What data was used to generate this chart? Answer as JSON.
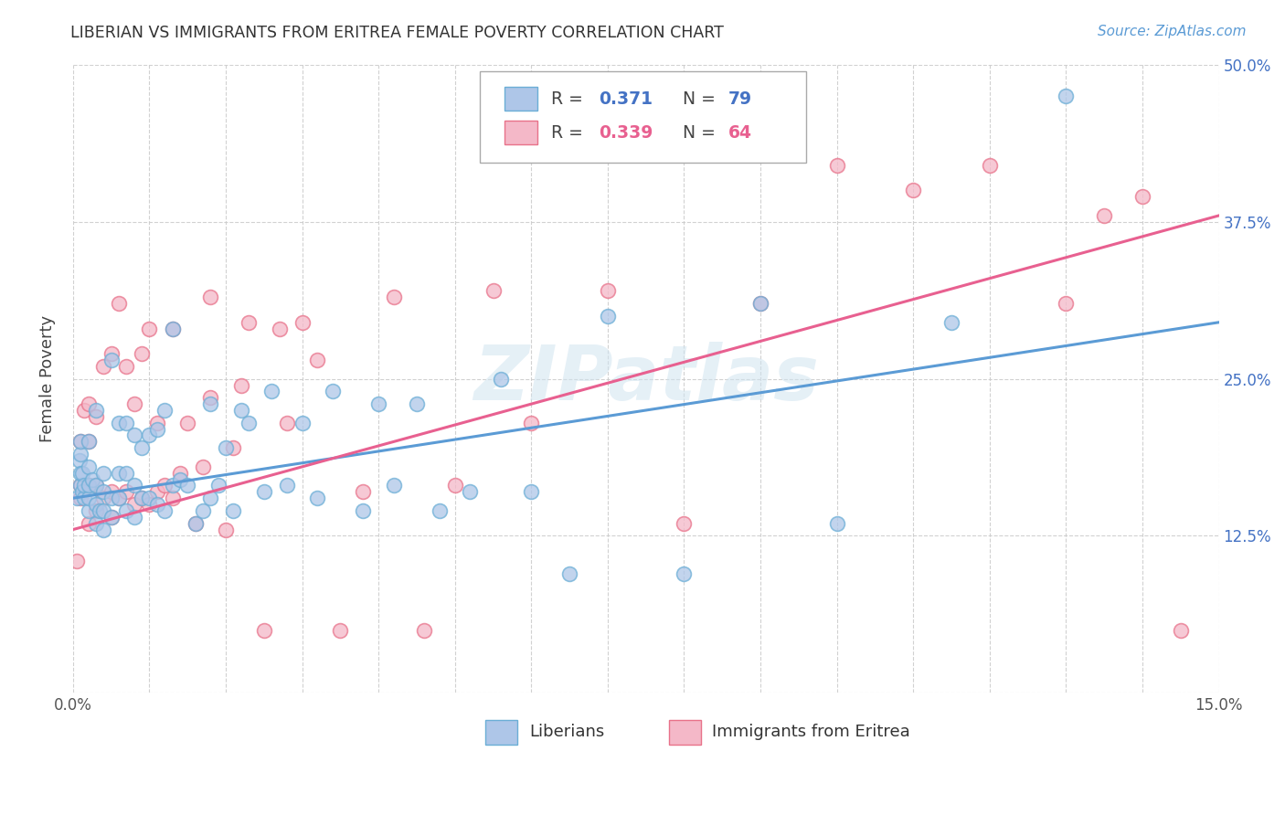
{
  "title": "LIBERIAN VS IMMIGRANTS FROM ERITREA FEMALE POVERTY CORRELATION CHART",
  "source_text": "Source: ZipAtlas.com",
  "ylabel": "Female Poverty",
  "xlim": [
    0.0,
    0.15
  ],
  "ylim": [
    0.0,
    0.5
  ],
  "watermark": "ZIPatlas",
  "legend_R1": "0.371",
  "legend_N1": "79",
  "legend_R2": "0.339",
  "legend_N2": "64",
  "color_liberian_fill": "#aec6e8",
  "color_liberian_edge": "#6baed6",
  "color_eritrea_fill": "#f4b8c8",
  "color_eritrea_edge": "#e8728a",
  "color_line_liberian": "#5b9bd5",
  "color_line_eritrea": "#e86090",
  "color_ytick_right": "#4472c4",
  "liberian_x": [
    0.0005,
    0.0008,
    0.001,
    0.001,
    0.001,
    0.001,
    0.0012,
    0.0012,
    0.0015,
    0.0015,
    0.002,
    0.002,
    0.002,
    0.002,
    0.002,
    0.0025,
    0.003,
    0.003,
    0.003,
    0.003,
    0.0035,
    0.004,
    0.004,
    0.004,
    0.004,
    0.005,
    0.005,
    0.005,
    0.006,
    0.006,
    0.006,
    0.007,
    0.007,
    0.007,
    0.008,
    0.008,
    0.008,
    0.009,
    0.009,
    0.01,
    0.01,
    0.011,
    0.011,
    0.012,
    0.012,
    0.013,
    0.013,
    0.014,
    0.015,
    0.016,
    0.017,
    0.018,
    0.018,
    0.019,
    0.02,
    0.021,
    0.022,
    0.023,
    0.025,
    0.026,
    0.028,
    0.03,
    0.032,
    0.034,
    0.038,
    0.04,
    0.042,
    0.045,
    0.048,
    0.052,
    0.056,
    0.06,
    0.065,
    0.07,
    0.08,
    0.09,
    0.1,
    0.115,
    0.13
  ],
  "liberian_y": [
    0.155,
    0.185,
    0.165,
    0.175,
    0.19,
    0.2,
    0.16,
    0.175,
    0.155,
    0.165,
    0.145,
    0.155,
    0.165,
    0.18,
    0.2,
    0.17,
    0.135,
    0.15,
    0.165,
    0.225,
    0.145,
    0.13,
    0.145,
    0.16,
    0.175,
    0.14,
    0.155,
    0.265,
    0.155,
    0.175,
    0.215,
    0.145,
    0.175,
    0.215,
    0.14,
    0.165,
    0.205,
    0.155,
    0.195,
    0.155,
    0.205,
    0.15,
    0.21,
    0.145,
    0.225,
    0.165,
    0.29,
    0.17,
    0.165,
    0.135,
    0.145,
    0.155,
    0.23,
    0.165,
    0.195,
    0.145,
    0.225,
    0.215,
    0.16,
    0.24,
    0.165,
    0.215,
    0.155,
    0.24,
    0.145,
    0.23,
    0.165,
    0.23,
    0.145,
    0.16,
    0.25,
    0.16,
    0.095,
    0.3,
    0.095,
    0.31,
    0.135,
    0.295,
    0.475
  ],
  "eritrea_x": [
    0.0005,
    0.001,
    0.001,
    0.001,
    0.0015,
    0.002,
    0.002,
    0.002,
    0.002,
    0.003,
    0.003,
    0.003,
    0.004,
    0.004,
    0.005,
    0.005,
    0.005,
    0.006,
    0.006,
    0.007,
    0.007,
    0.008,
    0.008,
    0.009,
    0.009,
    0.01,
    0.01,
    0.011,
    0.011,
    0.012,
    0.013,
    0.013,
    0.014,
    0.015,
    0.016,
    0.017,
    0.018,
    0.018,
    0.02,
    0.021,
    0.022,
    0.023,
    0.025,
    0.027,
    0.028,
    0.03,
    0.032,
    0.035,
    0.038,
    0.042,
    0.046,
    0.05,
    0.055,
    0.06,
    0.07,
    0.08,
    0.09,
    0.1,
    0.11,
    0.12,
    0.13,
    0.135,
    0.14,
    0.145
  ],
  "eritrea_y": [
    0.105,
    0.155,
    0.165,
    0.2,
    0.225,
    0.135,
    0.165,
    0.2,
    0.23,
    0.145,
    0.165,
    0.22,
    0.155,
    0.26,
    0.14,
    0.16,
    0.27,
    0.155,
    0.31,
    0.16,
    0.26,
    0.15,
    0.23,
    0.155,
    0.27,
    0.15,
    0.29,
    0.16,
    0.215,
    0.165,
    0.155,
    0.29,
    0.175,
    0.215,
    0.135,
    0.18,
    0.235,
    0.315,
    0.13,
    0.195,
    0.245,
    0.295,
    0.05,
    0.29,
    0.215,
    0.295,
    0.265,
    0.05,
    0.16,
    0.315,
    0.05,
    0.165,
    0.32,
    0.215,
    0.32,
    0.135,
    0.31,
    0.42,
    0.4,
    0.42,
    0.31,
    0.38,
    0.395,
    0.05
  ],
  "line_lib_x0": 0.0,
  "line_lib_x1": 0.15,
  "line_lib_y0": 0.155,
  "line_lib_y1": 0.295,
  "line_eri_x0": 0.0,
  "line_eri_x1": 0.15,
  "line_eri_y0": 0.13,
  "line_eri_y1": 0.38
}
